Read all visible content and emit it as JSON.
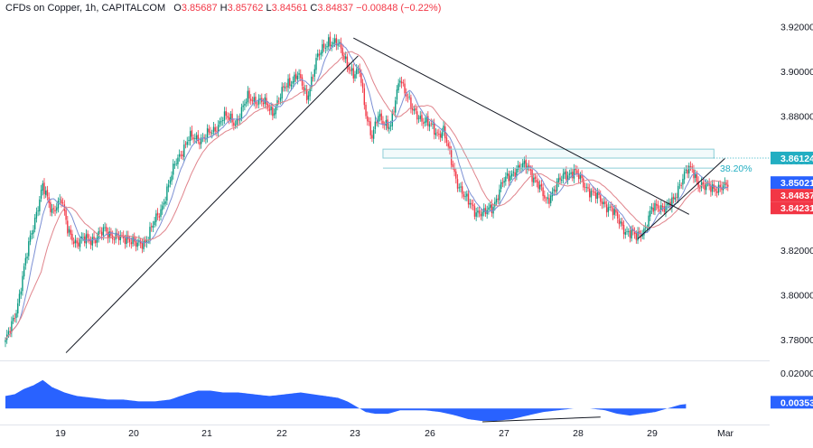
{
  "header": {
    "symbol": "CFDs on Copper",
    "interval": "1h",
    "source": "CAPITALCOM",
    "open_label": "O",
    "open": "3.85687",
    "high_label": "H",
    "high": "3.85762",
    "low_label": "L",
    "low": "3.84561",
    "close_label": "C",
    "close": "3.84837",
    "change": "−0.00848 (−0.22%)"
  },
  "chart_data": [
    {
      "type": "candlestick",
      "title": "",
      "x_ticks": [
        "19",
        "20",
        "21",
        "22",
        "23",
        "26",
        "27",
        "28",
        "29",
        "Mar"
      ],
      "y_ticks": [
        3.78,
        3.8,
        3.82,
        3.84,
        3.86,
        3.88,
        3.9,
        3.92
      ],
      "y_tick_labels": [
        "3.78000",
        "3.80000",
        "3.82000",
        "3.84000",
        "3.86000",
        "3.88000",
        "3.90000",
        "3.92000"
      ],
      "ylim": [
        3.771,
        3.932
      ],
      "close_path": [
        [
          0,
          3.778
        ],
        [
          8,
          3.796
        ],
        [
          16,
          3.826
        ],
        [
          24,
          3.848
        ],
        [
          30,
          3.838
        ],
        [
          36,
          3.842
        ],
        [
          40,
          3.83
        ],
        [
          46,
          3.822
        ],
        [
          52,
          3.826
        ],
        [
          58,
          3.824
        ],
        [
          64,
          3.83
        ],
        [
          70,
          3.825
        ],
        [
          78,
          3.826
        ],
        [
          84,
          3.822
        ],
        [
          90,
          3.824
        ],
        [
          100,
          3.838
        ],
        [
          110,
          3.86
        ],
        [
          118,
          3.87
        ],
        [
          126,
          3.87
        ],
        [
          134,
          3.873
        ],
        [
          140,
          3.88
        ],
        [
          148,
          3.877
        ],
        [
          156,
          3.888
        ],
        [
          164,
          3.887
        ],
        [
          172,
          3.882
        ],
        [
          180,
          3.893
        ],
        [
          188,
          3.899
        ],
        [
          194,
          3.888
        ],
        [
          200,
          3.905
        ],
        [
          208,
          3.914
        ],
        [
          214,
          3.912
        ],
        [
          220,
          3.904
        ],
        [
          224,
          3.898
        ],
        [
          228,
          3.9
        ],
        [
          232,
          3.882
        ],
        [
          236,
          3.87
        ],
        [
          240,
          3.88
        ],
        [
          248,
          3.875
        ],
        [
          254,
          3.898
        ],
        [
          262,
          3.882
        ],
        [
          270,
          3.878
        ],
        [
          278,
          3.872
        ],
        [
          282,
          3.874
        ],
        [
          286,
          3.862
        ],
        [
          290,
          3.852
        ],
        [
          296,
          3.843
        ],
        [
          302,
          3.838
        ],
        [
          308,
          3.836
        ],
        [
          314,
          3.84
        ],
        [
          320,
          3.85
        ],
        [
          328,
          3.856
        ],
        [
          336,
          3.858
        ],
        [
          342,
          3.85
        ],
        [
          348,
          3.842
        ],
        [
          354,
          3.848
        ],
        [
          360,
          3.854
        ],
        [
          366,
          3.855
        ],
        [
          372,
          3.85
        ],
        [
          378,
          3.845
        ],
        [
          384,
          3.842
        ],
        [
          390,
          3.838
        ],
        [
          396,
          3.832
        ],
        [
          400,
          3.828
        ],
        [
          406,
          3.826
        ],
        [
          412,
          3.83
        ],
        [
          416,
          3.838
        ],
        [
          420,
          3.84
        ],
        [
          426,
          3.839
        ],
        [
          430,
          3.842
        ],
        [
          434,
          3.85
        ],
        [
          438,
          3.855
        ],
        [
          442,
          3.856
        ],
        [
          446,
          3.85
        ],
        [
          450,
          3.848
        ]
      ],
      "moving_averages": [
        {
          "color": "#7b8fd4",
          "period": 10
        },
        {
          "color": "#e0848c",
          "period": 24
        }
      ],
      "trendlines": [
        {
          "from": [
            39,
            3.774
          ],
          "to": [
            227,
            3.907
          ]
        },
        {
          "from": [
            224,
            3.915
          ],
          "to": [
            440,
            3.836
          ]
        },
        {
          "from": [
            407,
            3.825
          ],
          "to": [
            463,
            3.861
          ]
        }
      ],
      "zone": {
        "top": 3.8652,
        "bottom": 3.8612
      },
      "support_line": 3.8567,
      "fib_label": "38.20%",
      "fib_level": 3.8567,
      "price_labels": [
        {
          "text": "3.86124",
          "value": 3.86124,
          "color": "#22aec2"
        },
        {
          "text": "3.85021",
          "value": 3.85021,
          "color": "#2962ff"
        },
        {
          "text": "3.84837",
          "value": 3.84837,
          "color": "#f23645"
        },
        {
          "text": "3.84231",
          "value": 3.84231,
          "color": "#f23645"
        }
      ],
      "up_color": "#089981",
      "down_color": "#f23645"
    },
    {
      "type": "area",
      "title": "",
      "y_tick_labels": [
        "0.02000"
      ],
      "y_ticks": [
        0.02
      ],
      "ylim": [
        -0.008,
        0.026
      ],
      "last_value_label": "0.00353",
      "color": "#2962ff",
      "values": [
        [
          0,
          0.007
        ],
        [
          6,
          0.008
        ],
        [
          12,
          0.011
        ],
        [
          18,
          0.013
        ],
        [
          24,
          0.016
        ],
        [
          30,
          0.012
        ],
        [
          38,
          0.009
        ],
        [
          46,
          0.007
        ],
        [
          56,
          0.006
        ],
        [
          66,
          0.005
        ],
        [
          76,
          0.005
        ],
        [
          86,
          0.004
        ],
        [
          96,
          0.004
        ],
        [
          106,
          0.005
        ],
        [
          116,
          0.008
        ],
        [
          124,
          0.01
        ],
        [
          132,
          0.01
        ],
        [
          140,
          0.009
        ],
        [
          150,
          0.009
        ],
        [
          160,
          0.008
        ],
        [
          170,
          0.007
        ],
        [
          180,
          0.008
        ],
        [
          190,
          0.009
        ],
        [
          198,
          0.008
        ],
        [
          206,
          0.007
        ],
        [
          214,
          0.006
        ],
        [
          220,
          0.004
        ],
        [
          226,
          0.001
        ],
        [
          232,
          -0.002
        ],
        [
          238,
          -0.003
        ],
        [
          246,
          -0.003
        ],
        [
          254,
          -0.001
        ],
        [
          262,
          -0.001
        ],
        [
          270,
          -0.001
        ],
        [
          280,
          -0.002
        ],
        [
          290,
          -0.004
        ],
        [
          298,
          -0.006
        ],
        [
          306,
          -0.007
        ],
        [
          316,
          -0.007
        ],
        [
          326,
          -0.006
        ],
        [
          336,
          -0.004
        ],
        [
          346,
          -0.002
        ],
        [
          356,
          -0.001
        ],
        [
          366,
          0.0
        ],
        [
          376,
          0.0
        ],
        [
          386,
          -0.001
        ],
        [
          394,
          -0.003
        ],
        [
          402,
          -0.004
        ],
        [
          410,
          -0.003
        ],
        [
          418,
          -0.002
        ],
        [
          426,
          0.0
        ],
        [
          434,
          0.002
        ],
        [
          442,
          0.003
        ],
        [
          450,
          0.0035
        ]
      ],
      "divergence_line": {
        "from": [
          307,
          -0.0075
        ],
        "to": [
          383,
          -0.0048
        ]
      }
    }
  ]
}
